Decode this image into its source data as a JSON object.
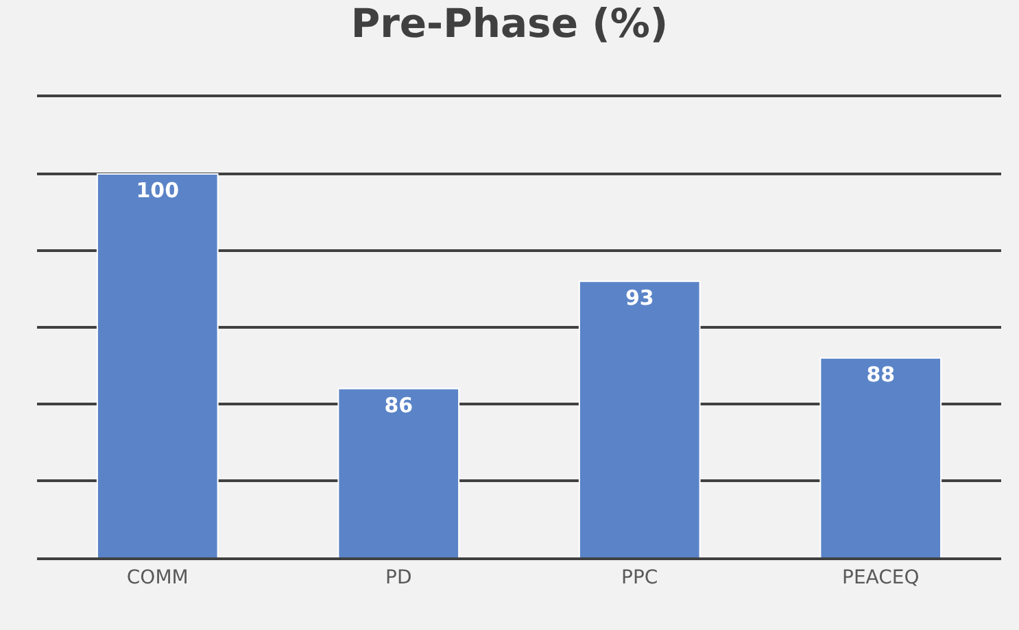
{
  "chart_data": {
    "type": "bar",
    "title": "Pre-Phase (%)",
    "categories": [
      "COMM",
      "PD",
      "PPC",
      "PEACEQ"
    ],
    "values": [
      100,
      86,
      93,
      88
    ],
    "color": "#5b84c8",
    "data_labels": true,
    "ylim": [
      75,
      105
    ],
    "yticks": [
      {
        "value": 75,
        "label": null
      },
      {
        "value": 80,
        "label": null
      },
      {
        "value": 85,
        "label": null
      },
      {
        "value": 90,
        "label": null
      },
      {
        "value": 95,
        "label": null
      },
      {
        "value": 100,
        "label": null
      },
      {
        "value": 105,
        "label": null
      }
    ],
    "grid": "y",
    "tick_labels": "x",
    "legend": false
  }
}
